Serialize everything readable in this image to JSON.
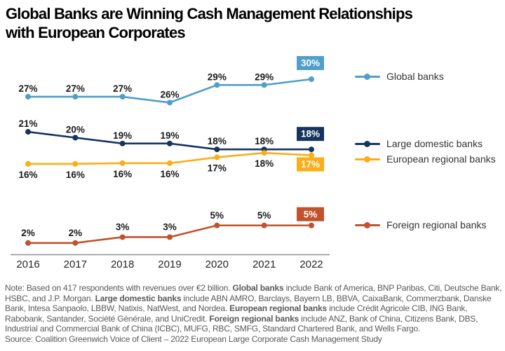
{
  "title": {
    "lines": [
      "Global Banks are Winning Cash Management Relationships",
      "with European Corporates"
    ]
  },
  "chart_data": {
    "type": "line",
    "x": [
      "2016",
      "2017",
      "2018",
      "2019",
      "2020",
      "2021",
      "2022"
    ],
    "value_suffix": "%",
    "ylim": [
      0,
      33
    ],
    "grid": false,
    "legend_position": "right",
    "series": [
      {
        "name": "Global banks",
        "color": "#519ECB",
        "values": [
          27,
          27,
          27,
          26,
          29,
          29,
          30
        ]
      },
      {
        "name": "Large domestic banks",
        "color": "#16345F",
        "values": [
          21,
          20,
          19,
          19,
          18,
          18,
          18
        ]
      },
      {
        "name": "European regional banks",
        "color": "#FBAE17",
        "values": [
          16,
          16,
          16,
          16,
          17,
          18,
          17
        ]
      },
      {
        "name": "Foreign regional banks",
        "color": "#C1522B",
        "values": [
          2,
          2,
          3,
          3,
          5,
          5,
          5
        ]
      }
    ]
  },
  "colors": {
    "background": "#FFFFFF",
    "title_text": "#000000",
    "axis_line": "#8F8F8F",
    "x_label": "#262626",
    "data_label": "#1A1A1A",
    "box_text": "#FFFFFF",
    "legend_text": "#333333",
    "note_text": "#595959"
  },
  "note": {
    "segments": [
      {
        "text": "Note: Based on 417 respondents with revenues over €2 billion. ",
        "bold": false
      },
      {
        "text": "Global banks",
        "bold": true
      },
      {
        "text": " include Bank of America, BNP Paribas, Citi, Deutsche Bank, HSBC, and J.P. Morgan. ",
        "bold": false
      },
      {
        "text": "Large domestic banks",
        "bold": true
      },
      {
        "text": " include ABN AMRO, Barclays, Bayern LB, BBVA, CaixaBank, Commerzbank, Danske Bank, Intesa Sanpaolo, LBBW, Natixis, NatWest, and Nordea. ",
        "bold": false
      },
      {
        "text": "European regional banks",
        "bold": true
      },
      {
        "text": " include Crédit Agricole CIB, ING Bank, Rabobank, Santander, Société Générale, and UniCredit. ",
        "bold": false
      },
      {
        "text": "Foreign regional banks",
        "bold": true
      },
      {
        "text": " include ANZ, Bank of China, Citizens Bank, DBS, Industrial and Commercial Bank of China (ICBC), MUFG, RBC, SMFG, Standard Chartered Bank, and Wells Fargo.",
        "bold": false
      }
    ]
  },
  "source": "Source: Coalition Greenwich Voice of Client – 2022 European Large Corporate Cash Management Study"
}
